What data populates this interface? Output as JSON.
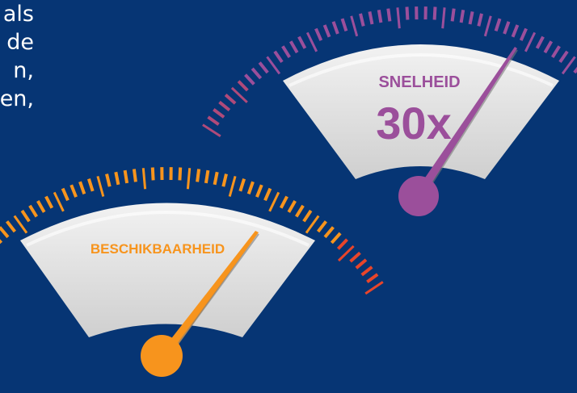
{
  "partial_text": {
    "lines": [
      "als",
      "de",
      "n,",
      "en,"
    ]
  },
  "gauges": [
    {
      "name": "speed",
      "label": "SNELHEID",
      "value": "30x",
      "color": "#9b4f9b",
      "tick_color": "#9b4f9b"
    },
    {
      "name": "availability",
      "label": "BESCHIKBAARHEID",
      "value": "",
      "color": "#f7941d",
      "tick_color": "#f7941d"
    }
  ]
}
